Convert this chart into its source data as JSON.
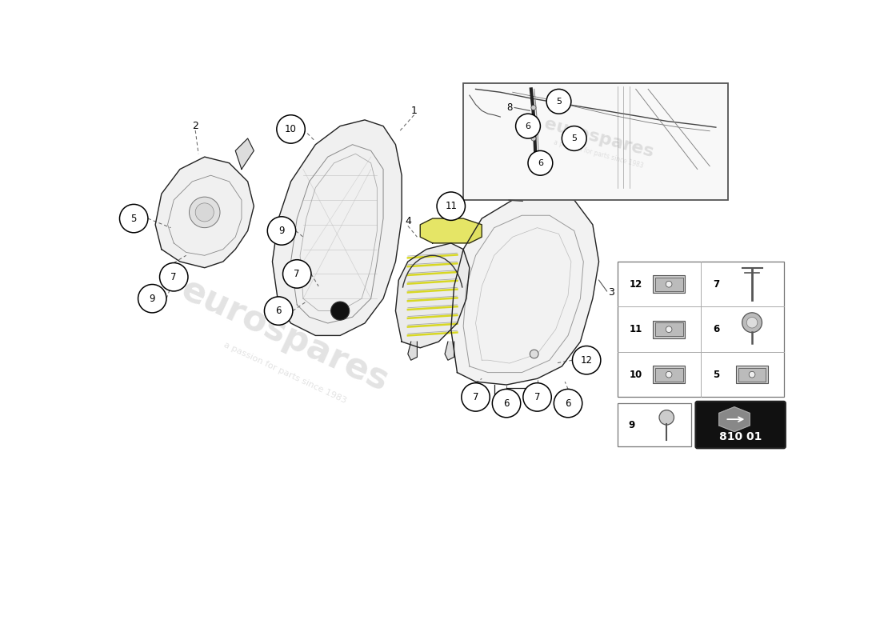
{
  "bg_color": "#ffffff",
  "part_number": "810 01",
  "watermark_text1": "eurospares",
  "watermark_text2": "a passion for parts since 1983",
  "label_color": "#000000",
  "circle_edgecolor": "#000000",
  "circle_facecolor": "#ffffff",
  "dashed_color": "#666666",
  "line_color": "#222222",
  "part_fill": "#f0f0f0",
  "yellow_accent": "#d4d400",
  "inset_bg": "#f8f8f8",
  "legend_items": [
    {
      "num": "12",
      "col": 0,
      "row": 2
    },
    {
      "num": "7",
      "col": 1,
      "row": 2
    },
    {
      "num": "11",
      "col": 0,
      "row": 1
    },
    {
      "num": "6",
      "col": 1,
      "row": 1
    },
    {
      "num": "10",
      "col": 0,
      "row": 0
    },
    {
      "num": "5",
      "col": 1,
      "row": 0
    }
  ]
}
